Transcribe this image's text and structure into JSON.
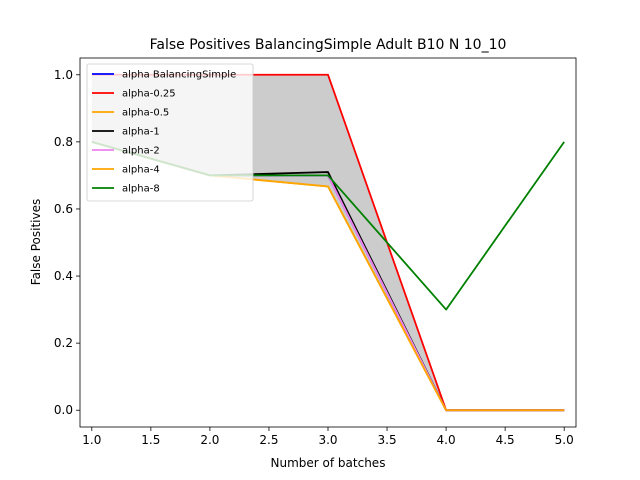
{
  "chart_data": {
    "type": "line",
    "title": "False Positives BalancingSimple Adult B10 N 10_10",
    "xlabel": "Number of batches",
    "ylabel": "False Positives",
    "xlim": [
      0.9,
      5.1
    ],
    "ylim": [
      -0.05,
      1.05
    ],
    "xticks": [
      1.0,
      1.5,
      2.0,
      2.5,
      3.0,
      3.5,
      4.0,
      4.5,
      5.0
    ],
    "xtick_labels": [
      "1.0",
      "1.5",
      "2.0",
      "2.5",
      "3.0",
      "3.5",
      "4.0",
      "4.5",
      "5.0"
    ],
    "yticks": [
      0.0,
      0.2,
      0.4,
      0.6,
      0.8,
      1.0
    ],
    "ytick_labels": [
      "0.0",
      "0.2",
      "0.4",
      "0.6",
      "0.8",
      "1.0"
    ],
    "grid": false,
    "legend_position": "upper-left",
    "band": {
      "x": [
        1,
        2,
        3,
        4,
        5
      ],
      "lower": [
        0.8,
        0.7,
        0.665,
        0.0,
        0.0
      ],
      "upper": [
        1.0,
        1.0,
        1.0,
        0.0,
        0.0
      ],
      "color": "#808080"
    },
    "series": [
      {
        "name": "alpha BalancingSimple",
        "color": "#0000ff",
        "x": [
          1,
          2,
          3,
          4,
          5
        ],
        "y": [
          0.8,
          0.7,
          0.7,
          0.0,
          0.0
        ]
      },
      {
        "name": "alpha-0.25",
        "color": "#ff0000",
        "x": [
          1,
          2,
          3,
          4,
          5
        ],
        "y": [
          1.0,
          1.0,
          1.0,
          0.0,
          0.0
        ]
      },
      {
        "name": "alpha-0.5",
        "color": "#ffa500",
        "x": [
          1,
          2,
          3,
          4,
          5
        ],
        "y": [
          0.8,
          0.7,
          0.667,
          0.0,
          0.0
        ]
      },
      {
        "name": "alpha-1",
        "color": "#000000",
        "x": [
          1,
          2,
          3,
          4,
          5
        ],
        "y": [
          0.8,
          0.7,
          0.71,
          0.0,
          0.0
        ]
      },
      {
        "name": "alpha-2",
        "color": "#ee82ee",
        "x": [
          1,
          2,
          3,
          4,
          5
        ],
        "y": [
          0.8,
          0.7,
          0.7,
          0.0,
          0.0
        ]
      },
      {
        "name": "alpha-4",
        "color": "#ffa500",
        "x": [
          1,
          2,
          3,
          4,
          5
        ],
        "y": [
          0.8,
          0.7,
          0.667,
          0.0,
          0.0
        ]
      },
      {
        "name": "alpha-8",
        "color": "#008000",
        "x": [
          1,
          2,
          3,
          4,
          5
        ],
        "y": [
          0.8,
          0.7,
          0.7,
          0.3,
          0.8
        ]
      }
    ]
  }
}
